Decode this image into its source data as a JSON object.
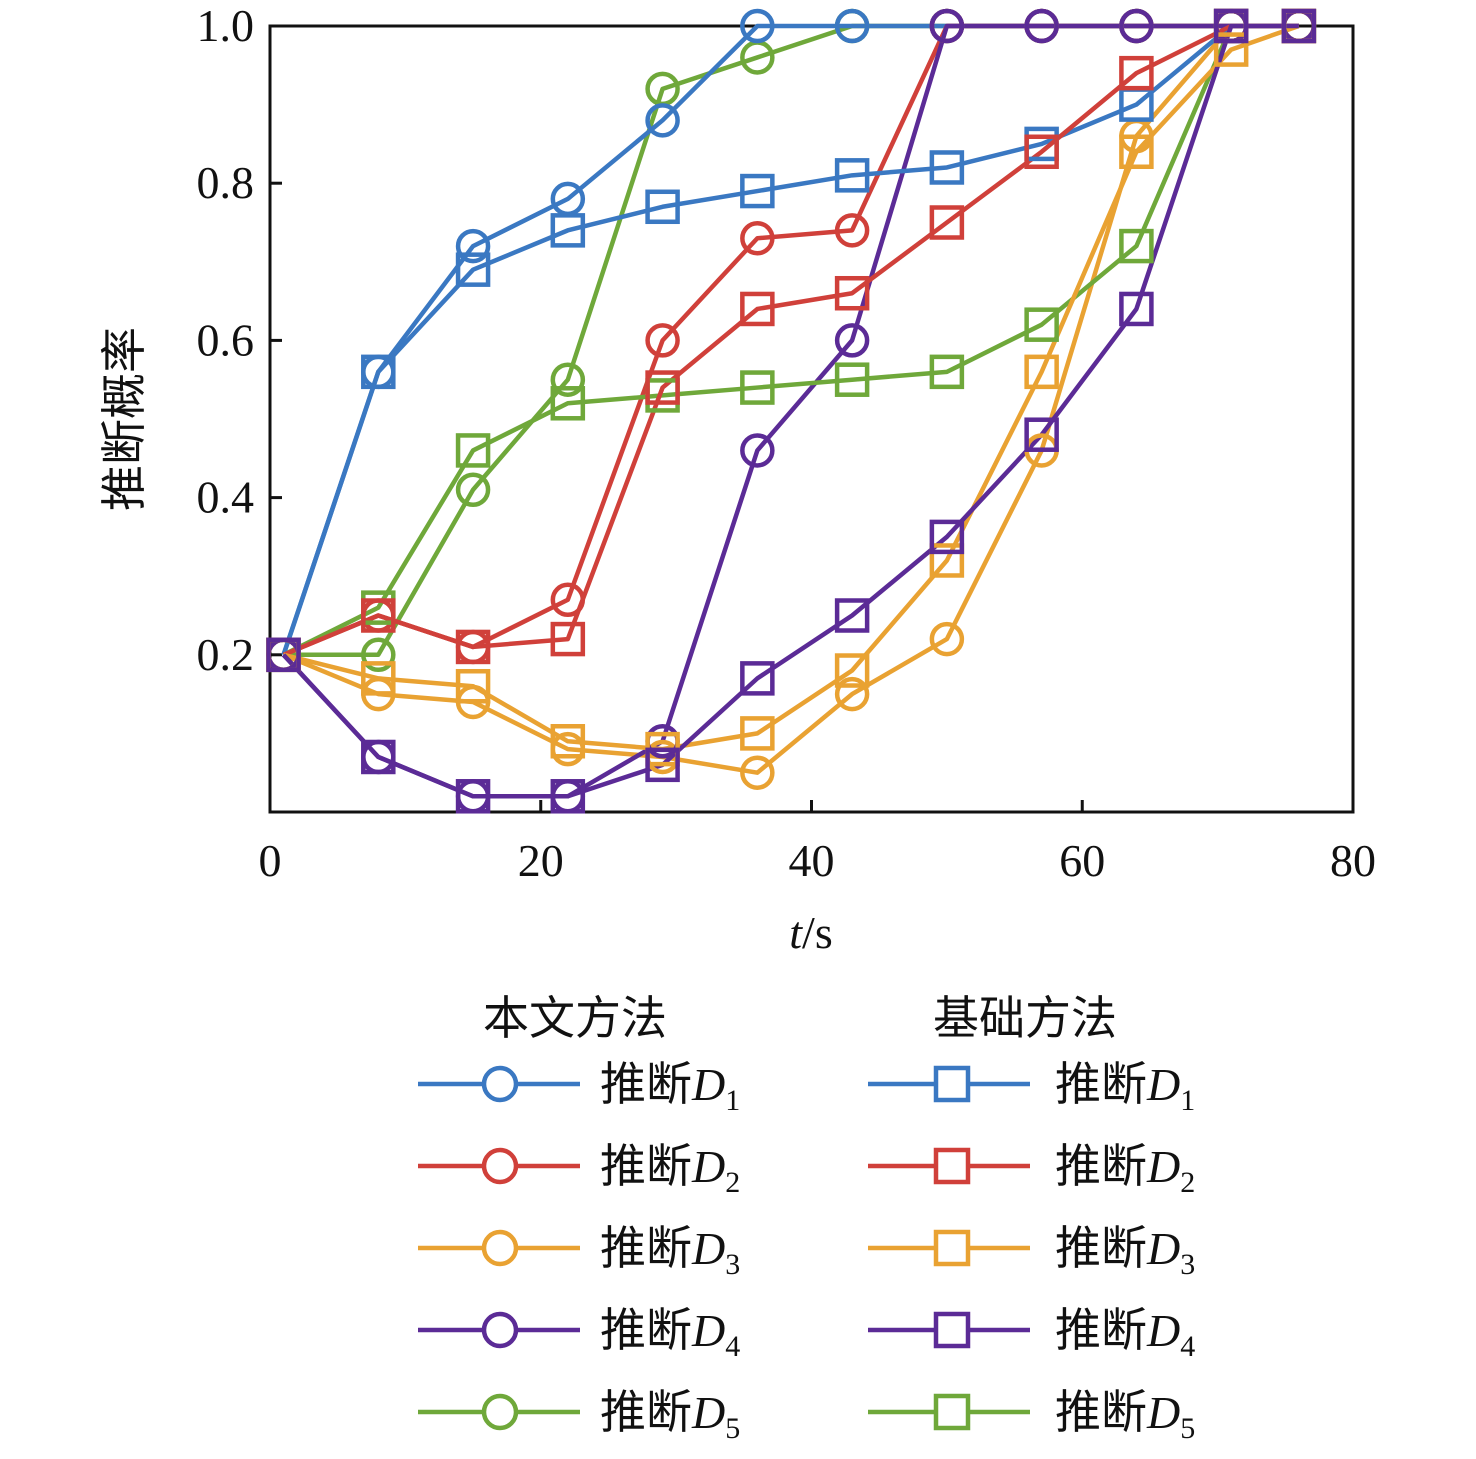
{
  "chart_data": {
    "type": "line",
    "xlabel_italic": "t",
    "xlabel_unit": "/s",
    "ylabel": "推断概率",
    "xlim": [
      0,
      80
    ],
    "ylim": [
      0,
      1.0
    ],
    "xticks": [
      0,
      20,
      40,
      60,
      80
    ],
    "yticks": [
      0.2,
      0.4,
      0.6,
      0.8,
      1.0
    ],
    "ytick_labels": [
      "0.2",
      "0.4",
      "0.6",
      "0.8",
      "1.0"
    ],
    "grid": false,
    "legend": {
      "placement": "below",
      "group_headers": [
        "本文方法",
        "基础方法"
      ],
      "entry_prefix": "推断",
      "entry_var": "D"
    },
    "colors": {
      "D1": "#3a78c2",
      "D2": "#d0403a",
      "D3": "#e9a232",
      "D4": "#5b2b96",
      "D5": "#6fa83a"
    },
    "series": [
      {
        "name": "推断D1",
        "group": "本文方法",
        "marker": "circle",
        "color_key": "D1",
        "sub": "1",
        "x": [
          1,
          8,
          15,
          22,
          29,
          36,
          43,
          50,
          57,
          64,
          71,
          76
        ],
        "y": [
          0.2,
          0.56,
          0.72,
          0.78,
          0.88,
          1.0,
          1.0,
          1.0,
          1.0,
          1.0,
          1.0,
          1.0
        ]
      },
      {
        "name": "推断D2",
        "group": "本文方法",
        "marker": "circle",
        "color_key": "D2",
        "sub": "2",
        "x": [
          1,
          8,
          15,
          22,
          29,
          36,
          43,
          50,
          57,
          64,
          71,
          76
        ],
        "y": [
          0.2,
          0.25,
          0.21,
          0.27,
          0.6,
          0.73,
          0.74,
          1.0,
          1.0,
          1.0,
          1.0,
          1.0
        ]
      },
      {
        "name": "推断D3",
        "group": "本文方法",
        "marker": "circle",
        "color_key": "D3",
        "sub": "3",
        "x": [
          1,
          8,
          15,
          22,
          29,
          36,
          43,
          50,
          57,
          64,
          71,
          76
        ],
        "y": [
          0.2,
          0.15,
          0.14,
          0.08,
          0.07,
          0.05,
          0.15,
          0.22,
          0.46,
          0.86,
          1.0,
          1.0
        ]
      },
      {
        "name": "推断D4",
        "group": "本文方法",
        "marker": "circle",
        "color_key": "D4",
        "sub": "4",
        "x": [
          1,
          8,
          15,
          22,
          29,
          36,
          43,
          50,
          57,
          64,
          71,
          76
        ],
        "y": [
          0.2,
          0.07,
          0.02,
          0.02,
          0.09,
          0.46,
          0.6,
          1.0,
          1.0,
          1.0,
          1.0,
          1.0
        ]
      },
      {
        "name": "推断D5",
        "group": "本文方法",
        "marker": "circle",
        "color_key": "D5",
        "sub": "5",
        "x": [
          1,
          8,
          15,
          22,
          29,
          36,
          43,
          50,
          57,
          64,
          71,
          76
        ],
        "y": [
          0.2,
          0.2,
          0.41,
          0.55,
          0.92,
          0.96,
          1.0,
          1.0,
          1.0,
          1.0,
          1.0,
          1.0
        ]
      },
      {
        "name": "推断D1",
        "group": "基础方法",
        "marker": "square",
        "color_key": "D1",
        "sub": "1",
        "x": [
          1,
          8,
          15,
          22,
          29,
          36,
          43,
          50,
          57,
          64,
          71,
          76
        ],
        "y": [
          0.2,
          0.56,
          0.69,
          0.74,
          0.77,
          0.79,
          0.81,
          0.82,
          0.85,
          0.9,
          1.0,
          1.0
        ]
      },
      {
        "name": "推断D2",
        "group": "基础方法",
        "marker": "square",
        "color_key": "D2",
        "sub": "2",
        "x": [
          1,
          8,
          15,
          22,
          29,
          36,
          43,
          50,
          57,
          64,
          71,
          76
        ],
        "y": [
          0.2,
          0.25,
          0.21,
          0.22,
          0.54,
          0.64,
          0.66,
          0.75,
          0.84,
          0.94,
          1.0,
          1.0
        ]
      },
      {
        "name": "推断D3",
        "group": "基础方法",
        "marker": "square",
        "color_key": "D3",
        "sub": "3",
        "x": [
          1,
          8,
          15,
          22,
          29,
          36,
          43,
          50,
          57,
          64,
          71,
          76
        ],
        "y": [
          0.2,
          0.17,
          0.16,
          0.09,
          0.08,
          0.1,
          0.18,
          0.32,
          0.56,
          0.84,
          0.97,
          1.0
        ]
      },
      {
        "name": "推断D4",
        "group": "基础方法",
        "marker": "square",
        "color_key": "D4",
        "sub": "4",
        "x": [
          1,
          8,
          15,
          22,
          29,
          36,
          43,
          50,
          57,
          64,
          71,
          76
        ],
        "y": [
          0.2,
          0.07,
          0.02,
          0.02,
          0.06,
          0.17,
          0.25,
          0.35,
          0.48,
          0.64,
          1.0,
          1.0
        ]
      },
      {
        "name": "推断D5",
        "group": "基础方法",
        "marker": "square",
        "color_key": "D5",
        "sub": "5",
        "x": [
          1,
          8,
          15,
          22,
          29,
          36,
          43,
          50,
          57,
          64,
          71,
          76
        ],
        "y": [
          0.2,
          0.26,
          0.46,
          0.52,
          0.53,
          0.54,
          0.55,
          0.56,
          0.62,
          0.72,
          1.0,
          1.0
        ]
      }
    ]
  }
}
